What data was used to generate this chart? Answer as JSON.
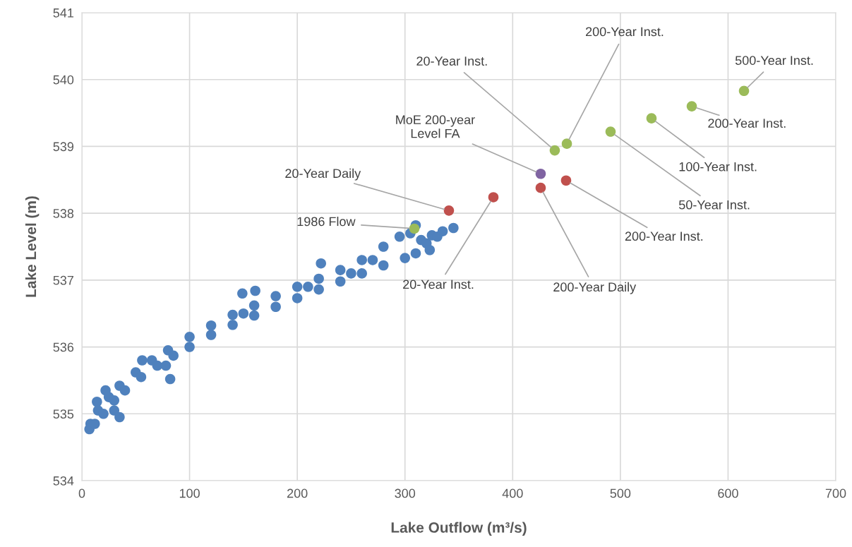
{
  "chart_data": {
    "type": "scatter",
    "xlabel": "Lake Outflow (m³/s)",
    "ylabel": "Lake Level (m)",
    "xlim": [
      0,
      700
    ],
    "xticks": [
      0,
      100,
      200,
      300,
      400,
      500,
      600,
      700
    ],
    "ylim": [
      534,
      541
    ],
    "yticks": [
      534,
      535,
      536,
      537,
      538,
      539,
      540,
      541
    ],
    "grid": true,
    "legend": false,
    "marker": "circle",
    "series": [
      {
        "color": "#4f81bd",
        "x": [
          8,
          15,
          25,
          35,
          50,
          65,
          80,
          100,
          120,
          140,
          160,
          180,
          200,
          220,
          240,
          260,
          280,
          295,
          305,
          7,
          12,
          20,
          30,
          40,
          55,
          70,
          85,
          100,
          120,
          140,
          160,
          180,
          200,
          220,
          240,
          260,
          280,
          300,
          310,
          150,
          210,
          250,
          270,
          315,
          320,
          325,
          330,
          335,
          345,
          149,
          161,
          222,
          323,
          310,
          82,
          56,
          35,
          22,
          14,
          30,
          78
        ],
        "values": [
          534.85,
          535.05,
          535.25,
          535.42,
          535.62,
          535.8,
          535.95,
          536.15,
          536.32,
          536.48,
          536.62,
          536.76,
          536.9,
          537.02,
          537.15,
          537.3,
          537.5,
          537.65,
          537.7,
          534.77,
          534.85,
          535.0,
          535.2,
          535.35,
          535.55,
          535.72,
          535.87,
          536.0,
          536.18,
          536.33,
          536.47,
          536.6,
          536.73,
          536.86,
          536.98,
          537.1,
          537.22,
          537.33,
          537.4,
          536.5,
          536.9,
          537.1,
          537.3,
          537.6,
          537.55,
          537.67,
          537.65,
          537.73,
          537.78,
          536.8,
          536.84,
          537.25,
          537.45,
          537.82,
          535.52,
          535.8,
          534.95,
          535.35,
          535.18,
          535.05,
          535.72
        ]
      },
      {
        "color": "#c0504d",
        "x": [
          340.8,
          382.1,
          426.0,
          449.6
        ],
        "values": [
          538.04,
          538.24,
          538.38,
          538.49
        ]
      },
      {
        "color": "#9bbb59",
        "x": [
          308.7,
          439.1,
          450.3,
          490.9,
          528.9,
          566.3,
          614.8
        ],
        "values": [
          537.77,
          538.94,
          539.04,
          539.22,
          539.42,
          539.6,
          539.83
        ]
      },
      {
        "color": "#8064a2",
        "x": [
          426.0
        ],
        "values": [
          538.59
        ]
      }
    ],
    "annotations": [
      {
        "text": "20-Year Inst.",
        "x": 439.1,
        "y": 538.94
      },
      {
        "text": "200-Year Inst.",
        "x": 450.3,
        "y": 539.04
      },
      {
        "text": "500-Year Inst.",
        "x": 614.8,
        "y": 539.83
      },
      {
        "text": "200-Year Inst.",
        "x": 566.3,
        "y": 539.6
      },
      {
        "text": "100-Year Inst.",
        "x": 528.9,
        "y": 539.42
      },
      {
        "text": "50-Year Inst.",
        "x": 490.9,
        "y": 539.22
      },
      {
        "text": "MoE 200-year\nLevel FA",
        "x": 426.0,
        "y": 538.59
      },
      {
        "text": "20-Year Daily",
        "x": 340.8,
        "y": 538.04
      },
      {
        "text": "1986 Flow",
        "x": 308.7,
        "y": 537.77
      },
      {
        "text": "20-Year Inst.",
        "x": 382.1,
        "y": 538.24
      },
      {
        "text": "200-Year Inst.",
        "x": 449.6,
        "y": 538.49
      },
      {
        "text": "200-Year Daily",
        "x": 426.0,
        "y": 538.38
      }
    ]
  }
}
